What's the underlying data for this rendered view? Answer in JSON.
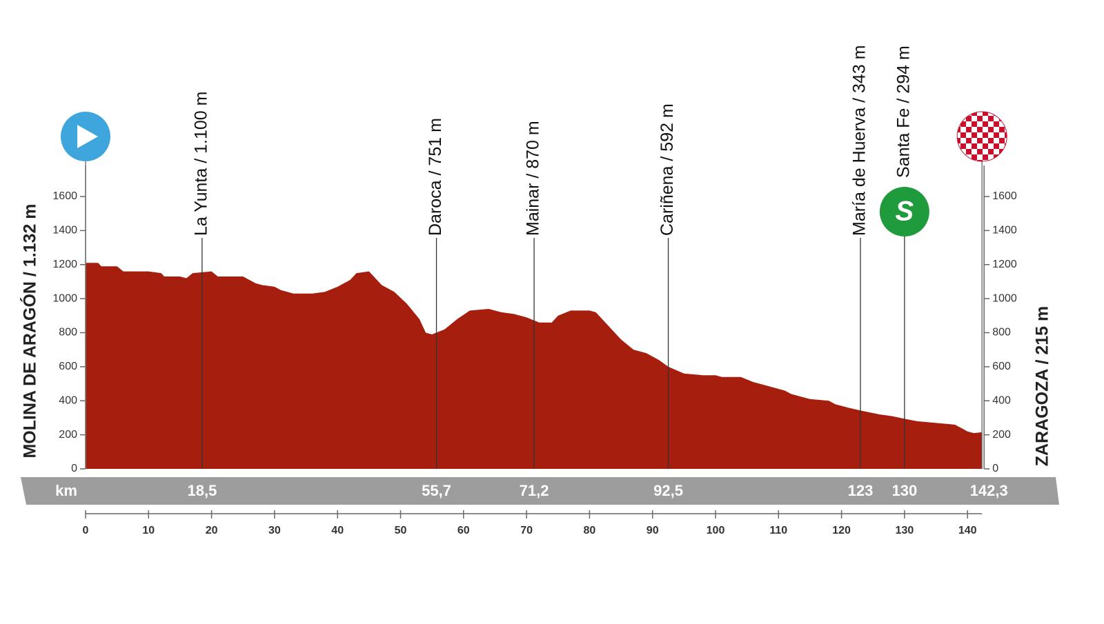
{
  "chart_data": {
    "type": "area",
    "color": "#a61e0e",
    "start_label": "MOLINA DE ARAGÓN / 1.132 m",
    "finish_label": "ZARAGOZA / 215 m",
    "km_label": "km",
    "sprint_label": "S",
    "x": [
      0,
      2,
      2.5,
      5,
      6,
      10,
      12,
      12.5,
      15,
      16,
      17,
      20,
      21,
      25,
      27,
      28,
      30,
      31,
      33,
      36,
      38,
      40,
      42,
      43,
      45,
      47,
      49,
      51,
      53,
      54,
      55,
      57,
      59,
      61,
      64,
      66,
      68,
      70,
      72,
      74,
      75,
      77,
      80,
      81,
      83,
      85,
      87,
      89,
      91,
      92.5,
      95,
      98,
      100,
      101,
      104,
      106,
      108,
      111,
      112,
      114,
      115,
      118,
      119,
      121,
      123,
      126,
      128,
      130,
      132,
      135,
      138,
      140,
      141,
      142.3
    ],
    "values": [
      1210,
      1210,
      1190,
      1190,
      1160,
      1160,
      1150,
      1130,
      1130,
      1120,
      1150,
      1160,
      1130,
      1130,
      1090,
      1080,
      1070,
      1050,
      1030,
      1030,
      1040,
      1070,
      1110,
      1150,
      1160,
      1080,
      1040,
      970,
      880,
      800,
      790,
      820,
      880,
      930,
      940,
      920,
      910,
      890,
      860,
      860,
      900,
      930,
      930,
      920,
      840,
      760,
      700,
      680,
      640,
      600,
      560,
      550,
      550,
      540,
      540,
      510,
      490,
      460,
      440,
      420,
      410,
      400,
      380,
      360,
      343,
      320,
      310,
      294,
      280,
      270,
      260,
      220,
      210,
      215
    ],
    "xlim": [
      0,
      142.3
    ],
    "xticks": [
      0,
      10,
      20,
      30,
      40,
      50,
      60,
      70,
      80,
      90,
      100,
      110,
      120,
      130,
      140
    ],
    "ylim": [
      0,
      1600
    ],
    "yticks": [
      0,
      200,
      400,
      600,
      800,
      1000,
      1200,
      1400,
      1600
    ],
    "waypoints": [
      {
        "km": {
          "value": 18.5,
          "label": "18,5"
        },
        "name": "La Yunta / 1.100 m"
      },
      {
        "km": {
          "value": 55.7,
          "label": "55,7"
        },
        "name": "Daroca / 751 m"
      },
      {
        "km": {
          "value": 71.2,
          "label": "71,2"
        },
        "name": "Mainar / 870 m"
      },
      {
        "km": {
          "value": 92.5,
          "label": "92,5"
        },
        "name": "Cariñena / 592 m"
      },
      {
        "km": 123,
        "name": "María de Huerva / 343 m"
      },
      {
        "km": 130,
        "name": "Santa Fe / 294 m",
        "sprint": true
      }
    ],
    "finish_km": {
      "value": 142.3,
      "label": "142,3"
    }
  }
}
